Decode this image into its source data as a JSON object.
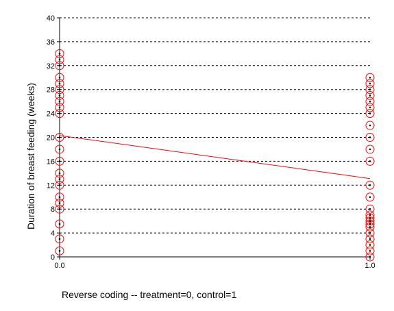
{
  "chart_data": {
    "type": "scatter",
    "xlabel": "Reverse coding -- treatment=0, control=1",
    "ylabel": "Duration of breast feeding (weeks)",
    "xlim": [
      0,
      1
    ],
    "ylim": [
      0,
      40
    ],
    "x_ticks": [
      "0.0",
      "1.0"
    ],
    "y_ticks": [
      0,
      4,
      8,
      12,
      16,
      20,
      24,
      28,
      32,
      36,
      40
    ],
    "grid": "horizontal dashed",
    "colors": {
      "points": "#ff0000",
      "fit_line": "#ff0000",
      "axis": "#000000",
      "grid": "#000000"
    },
    "series": [
      {
        "x": 0,
        "y": [
          1,
          3,
          5.5,
          8,
          9,
          10,
          12,
          13,
          14,
          16,
          18,
          20,
          24,
          25,
          26,
          27,
          28,
          29,
          30,
          32,
          33,
          34
        ]
      },
      {
        "x": 1,
        "y": [
          0,
          1,
          2,
          3,
          4,
          5,
          5.5,
          6,
          6.5,
          7,
          8,
          10,
          12,
          16,
          18,
          20,
          22,
          24,
          25,
          26,
          27,
          28,
          29,
          30
        ]
      }
    ],
    "fit_line": {
      "x": [
        0,
        1
      ],
      "y": [
        20.3,
        13.1
      ]
    }
  }
}
